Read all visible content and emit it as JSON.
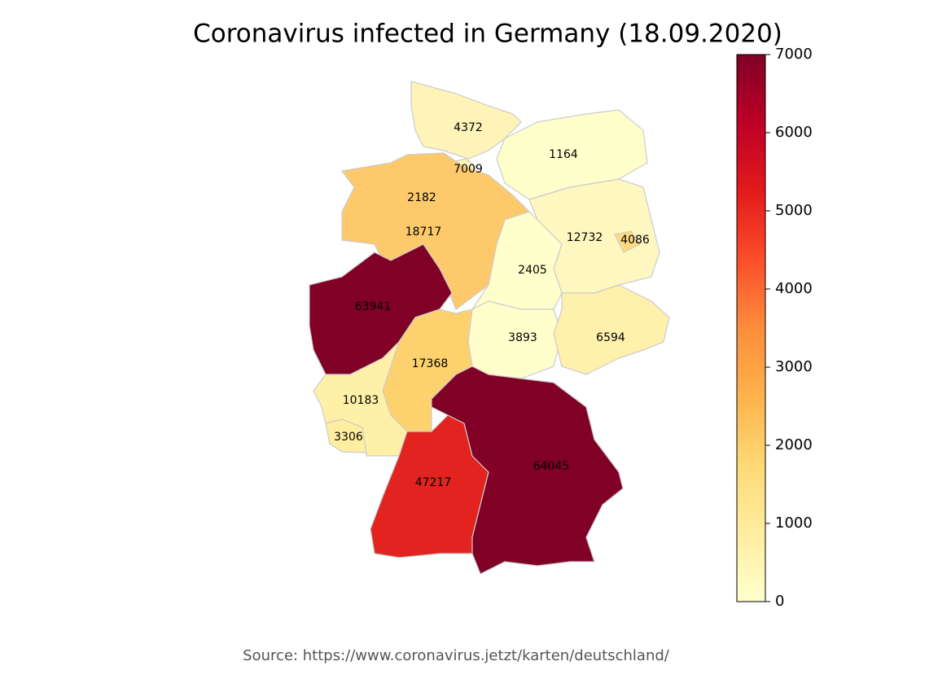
{
  "chart_data": {
    "type": "choropleth",
    "title": "Coronavirus infected in Germany (18.09.2020)",
    "source": "Source: https://www.coronavirus.jetzt/karten/deutschland/",
    "regions": [
      {
        "value": 4372,
        "color": "#fff4b8"
      },
      {
        "value": 7009,
        "color": "#fff4b8"
      },
      {
        "value": 1164,
        "color": "#ffffcc"
      },
      {
        "value": 2182,
        "color": "#fec96a"
      },
      {
        "value": 18717,
        "color": "#fec96a"
      },
      {
        "value": 12732,
        "color": "#fff7c0"
      },
      {
        "value": 4086,
        "color": "#fed980"
      },
      {
        "value": 2405,
        "color": "#ffffcc"
      },
      {
        "value": 63941,
        "color": "#800026"
      },
      {
        "value": 3893,
        "color": "#ffffcc"
      },
      {
        "value": 6594,
        "color": "#fff0ac"
      },
      {
        "value": 17368,
        "color": "#fed16f"
      },
      {
        "value": 10183,
        "color": "#fff0a8"
      },
      {
        "value": 3306,
        "color": "#ffeda0"
      },
      {
        "value": 47217,
        "color": "#e2231f"
      },
      {
        "value": 64045,
        "color": "#800026"
      }
    ],
    "colorbar_colors": [
      "#ffffcc",
      "#ffeda0",
      "#fed976",
      "#feb24c",
      "#fd8d3c",
      "#fc4e2a",
      "#e31a1c",
      "#bd0026",
      "#800026"
    ],
    "ylim": [
      0,
      7000
    ],
    "yticks": [
      0,
      1000,
      2000,
      3000,
      4000,
      5000,
      6000,
      7000
    ]
  }
}
